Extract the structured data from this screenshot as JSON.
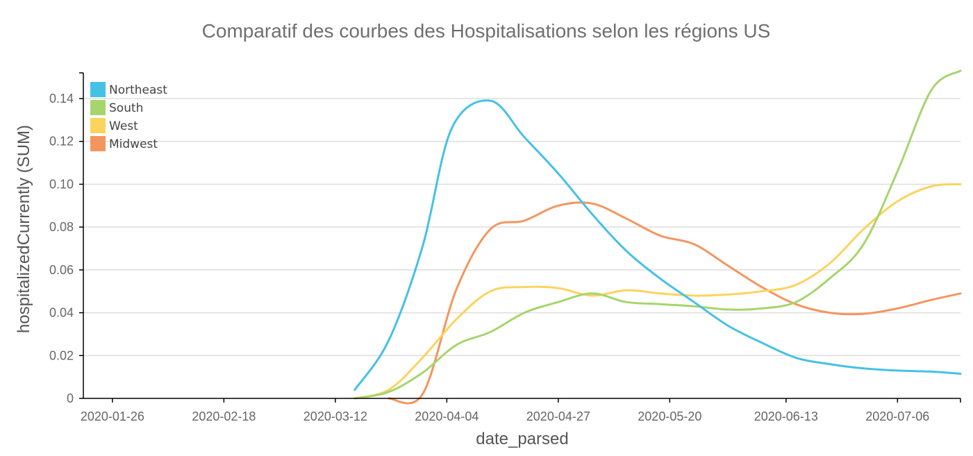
{
  "chart_data": {
    "type": "line",
    "title": "Comparatif des courbes des Hospitalisations  selon les régions US",
    "xlabel": "date_parsed",
    "ylabel": "hospitalizedCurrently (SUM)",
    "x_tick_labels": [
      "2020-01-26",
      "2020-02-18",
      "2020-03-12",
      "2020-04-04",
      "2020-04-27",
      "2020-05-20",
      "2020-06-13",
      "2020-07-06"
    ],
    "y_tick_labels": [
      "0",
      "0.02",
      "0.04",
      "0.06",
      "0.08",
      "0.10",
      "0.12",
      "0.14"
    ],
    "ylim": [
      0,
      0.152
    ],
    "xlim": [
      "2020-01-20",
      "2020-07-19"
    ],
    "grid": true,
    "legend_position": "top-left",
    "series": [
      {
        "name": "Northeast",
        "color": "#45c1e6",
        "points": [
          [
            "2020-03-16",
            0.004
          ],
          [
            "2020-03-23",
            0.027
          ],
          [
            "2020-03-30",
            0.071
          ],
          [
            "2020-04-05",
            0.126
          ],
          [
            "2020-04-13",
            0.139
          ],
          [
            "2020-04-20",
            0.122
          ],
          [
            "2020-04-27",
            0.105
          ],
          [
            "2020-05-04",
            0.086
          ],
          [
            "2020-05-11",
            0.069
          ],
          [
            "2020-05-18",
            0.056
          ],
          [
            "2020-05-25",
            0.045
          ],
          [
            "2020-06-01",
            0.034
          ],
          [
            "2020-06-08",
            0.026
          ],
          [
            "2020-06-15",
            0.019
          ],
          [
            "2020-06-22",
            0.016
          ],
          [
            "2020-06-29",
            0.014
          ],
          [
            "2020-07-06",
            0.013
          ],
          [
            "2020-07-13",
            0.0125
          ],
          [
            "2020-07-19",
            0.0115
          ]
        ]
      },
      {
        "name": "South",
        "color": "#a6d56c",
        "points": [
          [
            "2020-03-16",
            0.0
          ],
          [
            "2020-03-23",
            0.003
          ],
          [
            "2020-03-30",
            0.012
          ],
          [
            "2020-04-06",
            0.025
          ],
          [
            "2020-04-13",
            0.031
          ],
          [
            "2020-04-20",
            0.04
          ],
          [
            "2020-04-27",
            0.045
          ],
          [
            "2020-05-04",
            0.049
          ],
          [
            "2020-05-11",
            0.045
          ],
          [
            "2020-05-18",
            0.044
          ],
          [
            "2020-05-25",
            0.043
          ],
          [
            "2020-06-01",
            0.0415
          ],
          [
            "2020-06-08",
            0.042
          ],
          [
            "2020-06-15",
            0.045
          ],
          [
            "2020-06-22",
            0.056
          ],
          [
            "2020-06-29",
            0.072
          ],
          [
            "2020-07-06",
            0.106
          ],
          [
            "2020-07-13",
            0.144
          ],
          [
            "2020-07-19",
            0.153
          ]
        ]
      },
      {
        "name": "West",
        "color": "#fcd35e",
        "points": [
          [
            "2020-03-16",
            0.0
          ],
          [
            "2020-03-23",
            0.004
          ],
          [
            "2020-03-30",
            0.019
          ],
          [
            "2020-04-06",
            0.037
          ],
          [
            "2020-04-13",
            0.05
          ],
          [
            "2020-04-20",
            0.052
          ],
          [
            "2020-04-27",
            0.0515
          ],
          [
            "2020-05-04",
            0.048
          ],
          [
            "2020-05-11",
            0.0505
          ],
          [
            "2020-05-18",
            0.049
          ],
          [
            "2020-05-25",
            0.048
          ],
          [
            "2020-06-01",
            0.0485
          ],
          [
            "2020-06-08",
            0.05
          ],
          [
            "2020-06-15",
            0.053
          ],
          [
            "2020-06-22",
            0.063
          ],
          [
            "2020-06-29",
            0.079
          ],
          [
            "2020-07-06",
            0.092
          ],
          [
            "2020-07-13",
            0.099
          ],
          [
            "2020-07-19",
            0.1
          ]
        ]
      },
      {
        "name": "Midwest",
        "color": "#f4955f",
        "points": [
          [
            "2020-03-23",
            0.0
          ],
          [
            "2020-03-30",
            0.002
          ],
          [
            "2020-04-06",
            0.051
          ],
          [
            "2020-04-13",
            0.079
          ],
          [
            "2020-04-20",
            0.083
          ],
          [
            "2020-04-27",
            0.09
          ],
          [
            "2020-05-04",
            0.091
          ],
          [
            "2020-05-11",
            0.084
          ],
          [
            "2020-05-18",
            0.076
          ],
          [
            "2020-05-25",
            0.072
          ],
          [
            "2020-06-01",
            0.062
          ],
          [
            "2020-06-08",
            0.052
          ],
          [
            "2020-06-15",
            0.044
          ],
          [
            "2020-06-22",
            0.04
          ],
          [
            "2020-06-29",
            0.0395
          ],
          [
            "2020-07-06",
            0.042
          ],
          [
            "2020-07-13",
            0.046
          ],
          [
            "2020-07-19",
            0.049
          ]
        ]
      }
    ]
  }
}
